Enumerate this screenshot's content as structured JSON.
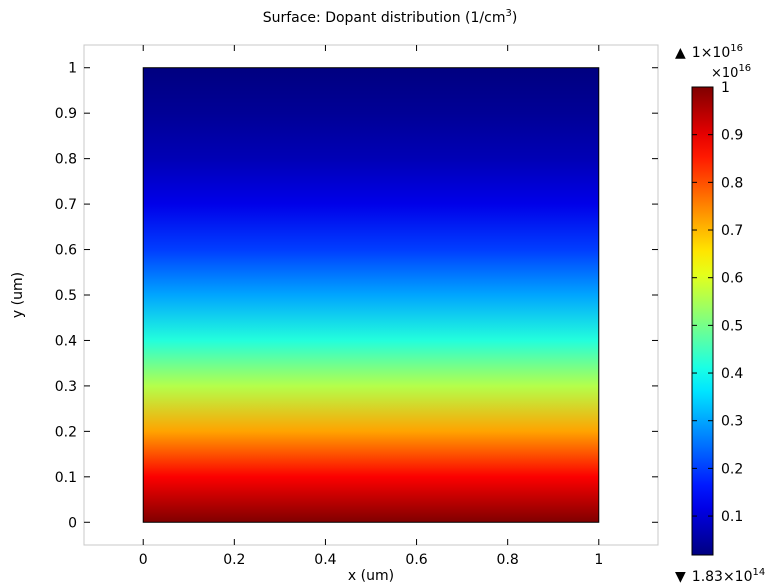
{
  "chart_data": {
    "type": "heatmap",
    "title": "Surface: Dopant distribution (1/cm",
    "title_sup": "3",
    "title_end": ")",
    "xlabel": "x (um)",
    "ylabel": "y (um)",
    "xlim": [
      -0.13,
      1.13
    ],
    "ylim": [
      -0.05,
      1.05
    ],
    "domain": {
      "x": [
        0,
        1
      ],
      "y": [
        0,
        1
      ]
    },
    "x_ticks": [
      0,
      0.2,
      0.4,
      0.6,
      0.8,
      1
    ],
    "x_tick_labels": [
      "0",
      "0.2",
      "0.4",
      "0.6",
      "0.8",
      "1"
    ],
    "y_ticks": [
      0,
      0.1,
      0.2,
      0.3,
      0.4,
      0.5,
      0.6,
      0.7,
      0.8,
      0.9,
      1
    ],
    "y_tick_labels": [
      "0",
      "0.1",
      "0.2",
      "0.3",
      "0.4",
      "0.5",
      "0.6",
      "0.7",
      "0.8",
      "0.9",
      "1"
    ],
    "field_profile": {
      "description_axis": "y",
      "y": [
        0,
        0.1,
        0.2,
        0.3,
        0.4,
        0.5,
        0.6,
        0.7,
        0.8,
        0.9,
        1
      ],
      "value_e16": [
        1.0,
        0.88,
        0.72,
        0.56,
        0.42,
        0.3,
        0.2,
        0.12,
        0.07,
        0.04,
        0.0183
      ]
    },
    "colorbar": {
      "colormap": "jet",
      "range_e16": [
        0.0183,
        1
      ],
      "multiplier": "×10",
      "multiplier_exp": "16",
      "ticks": [
        0.1,
        0.2,
        0.3,
        0.4,
        0.5,
        0.6,
        0.7,
        0.8,
        0.9,
        1
      ],
      "tick_labels": [
        "0.1",
        "0.2",
        "0.3",
        "0.4",
        "0.5",
        "0.6",
        "0.7",
        "0.8",
        "0.9",
        "1"
      ],
      "max_label": "1×10",
      "max_exp": "16",
      "min_label": "1.83×10",
      "min_exp": "14",
      "max_marker": "▲",
      "min_marker": "▼"
    }
  }
}
